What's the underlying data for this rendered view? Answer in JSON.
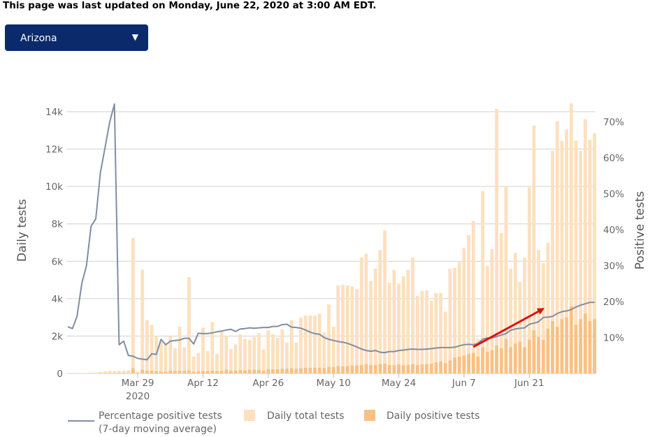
{
  "header": {
    "updated_text": "This page was last updated on Monday, June 22, 2020 at 3:00 AM EDT."
  },
  "state_selector": {
    "selected": "Arizona",
    "caret": "▼"
  },
  "colors": {
    "total": "#fde0be",
    "positive": "#f8c183",
    "line": "#7f8ea3",
    "arrow": "#dd1111",
    "grid": "#d0d0d0"
  },
  "chart_data": {
    "type": "bar+line",
    "ylabel_left": "Daily tests",
    "ylabel_right": "Positive tests",
    "y_left_ticks": [
      "0",
      "2k",
      "4k",
      "6k",
      "8k",
      "10k",
      "12k",
      "14k"
    ],
    "y_left_range": [
      0,
      14000
    ],
    "y_right_ticks": [
      "10%",
      "20%",
      "30%",
      "40%",
      "50%",
      "60%",
      "70%"
    ],
    "y_right_range": [
      0,
      75
    ],
    "x_ticks": [
      {
        "day": 15,
        "label": "Mar 29",
        "sublabel": "2020"
      },
      {
        "day": 29,
        "label": "Apr 12",
        "sublabel": ""
      },
      {
        "day": 43,
        "label": "Apr 26",
        "sublabel": ""
      },
      {
        "day": 57,
        "label": "May 10",
        "sublabel": ""
      },
      {
        "day": 71,
        "label": "May 24",
        "sublabel": ""
      },
      {
        "day": 85,
        "label": "Jun 7",
        "sublabel": ""
      },
      {
        "day": 99,
        "label": "Jun 21",
        "sublabel": ""
      }
    ],
    "start_date": "Mar 14",
    "series": [
      {
        "name": "Daily total tests",
        "values": [
          0,
          0,
          0,
          0,
          20,
          50,
          50,
          80,
          120,
          150,
          130,
          150,
          160,
          180,
          7250,
          90,
          5550,
          2850,
          2600,
          2000,
          1700,
          1600,
          2000,
          1350,
          2500,
          1400,
          5150,
          900,
          1100,
          2450,
          1200,
          2750,
          1050,
          2300,
          2000,
          1300,
          1550,
          2100,
          1850,
          1800,
          1950,
          2150,
          1300,
          2300,
          2100,
          1900,
          2350,
          1650,
          2850,
          1650,
          3000,
          3100,
          3100,
          3100,
          3200,
          2200,
          3700,
          2500,
          4700,
          4750,
          4700,
          4650,
          4500,
          6200,
          6400,
          4950,
          5600,
          6600,
          7650,
          4850,
          5550,
          4800,
          5200,
          5550,
          6200,
          4150,
          4400,
          4450,
          3900,
          4300,
          4300,
          3300,
          5600,
          5650,
          5950,
          6700,
          7400,
          8150,
          1850,
          9750,
          5750,
          6650,
          14150,
          7500,
          10000,
          5600,
          6450,
          4900,
          6200,
          9950,
          13250,
          6600,
          5900,
          7000,
          11900,
          13500,
          12450,
          13050,
          14450,
          12450,
          11900,
          13600,
          12500,
          12850
        ]
      },
      {
        "name": "Daily positive tests",
        "values": [
          0,
          0,
          0,
          0,
          5,
          10,
          10,
          15,
          20,
          25,
          20,
          25,
          25,
          30,
          280,
          20,
          200,
          140,
          150,
          120,
          100,
          100,
          150,
          140,
          150,
          140,
          160,
          100,
          120,
          140,
          130,
          150,
          120,
          140,
          200,
          150,
          160,
          180,
          160,
          190,
          200,
          200,
          150,
          230,
          220,
          220,
          250,
          250,
          280,
          240,
          280,
          300,
          300,
          310,
          310,
          290,
          350,
          350,
          400,
          380,
          400,
          420,
          430,
          450,
          500,
          450,
          450,
          500,
          520,
          450,
          450,
          480,
          440,
          460,
          500,
          450,
          480,
          500,
          520,
          600,
          650,
          550,
          700,
          850,
          900,
          950,
          1050,
          1100,
          900,
          1400,
          1150,
          1250,
          1500,
          1350,
          1850,
          1400,
          1600,
          1700,
          1400,
          1800,
          2300,
          1950,
          1800,
          2400,
          2800,
          2500,
          2900,
          3000,
          3600,
          2600,
          2900,
          3200,
          2800,
          2900
        ]
      },
      {
        "name": "Percentage positive tests (7-day moving average)",
        "axis": "right",
        "values": [
          13,
          12.5,
          16,
          25,
          30,
          41,
          43,
          56,
          63,
          70,
          75,
          8,
          9,
          5,
          4.8,
          4.2,
          4,
          3.8,
          5.5,
          5.3,
          9.5,
          8,
          9,
          9.2,
          9.3,
          9.8,
          9.8,
          8.2,
          11.2,
          11.1,
          11.1,
          11.3,
          11.6,
          11.8,
          12.1,
          12.3,
          11.7,
          12.4,
          12.5,
          12.7,
          12.6,
          12.7,
          12.8,
          12.8,
          13.1,
          13.1,
          13.6,
          13.7,
          12.9,
          12.8,
          12.6,
          12.1,
          11.5,
          11.1,
          10.9,
          10,
          9.5,
          9.2,
          8.9,
          8.7,
          8.4,
          7.9,
          7.4,
          6.8,
          6.4,
          6.2,
          6.4,
          5.9,
          5.8,
          6.1,
          6.1,
          6.4,
          6.5,
          6.7,
          6.8,
          6.7,
          6.7,
          6.8,
          6.9,
          7.1,
          7.2,
          7.2,
          7.2,
          7.3,
          7.7,
          8,
          8.1,
          8,
          8.4,
          9.5,
          9.9,
          9.9,
          10.3,
          10.7,
          11.1,
          12,
          12.4,
          12.6,
          12.7,
          13.7,
          14,
          14.4,
          15.6,
          15.7,
          15.9,
          16.7,
          17.2,
          17.4,
          17.8,
          18.5,
          19,
          19.4,
          19.8,
          19.8
        ]
      }
    ],
    "legend": [
      {
        "label": "Percentage positive tests",
        "sublabel": "(7-day moving average)",
        "kind": "line"
      },
      {
        "label": "Daily total tests",
        "sublabel": "",
        "kind": "total"
      },
      {
        "label": "Daily positive tests",
        "sublabel": "",
        "kind": "positive"
      }
    ],
    "annotation": {
      "type": "arrow",
      "description": "upward trend in positive tests",
      "from_day": 87,
      "from_value_pct": 7.4,
      "to_day": 102,
      "to_value_pct": 18.0
    }
  }
}
